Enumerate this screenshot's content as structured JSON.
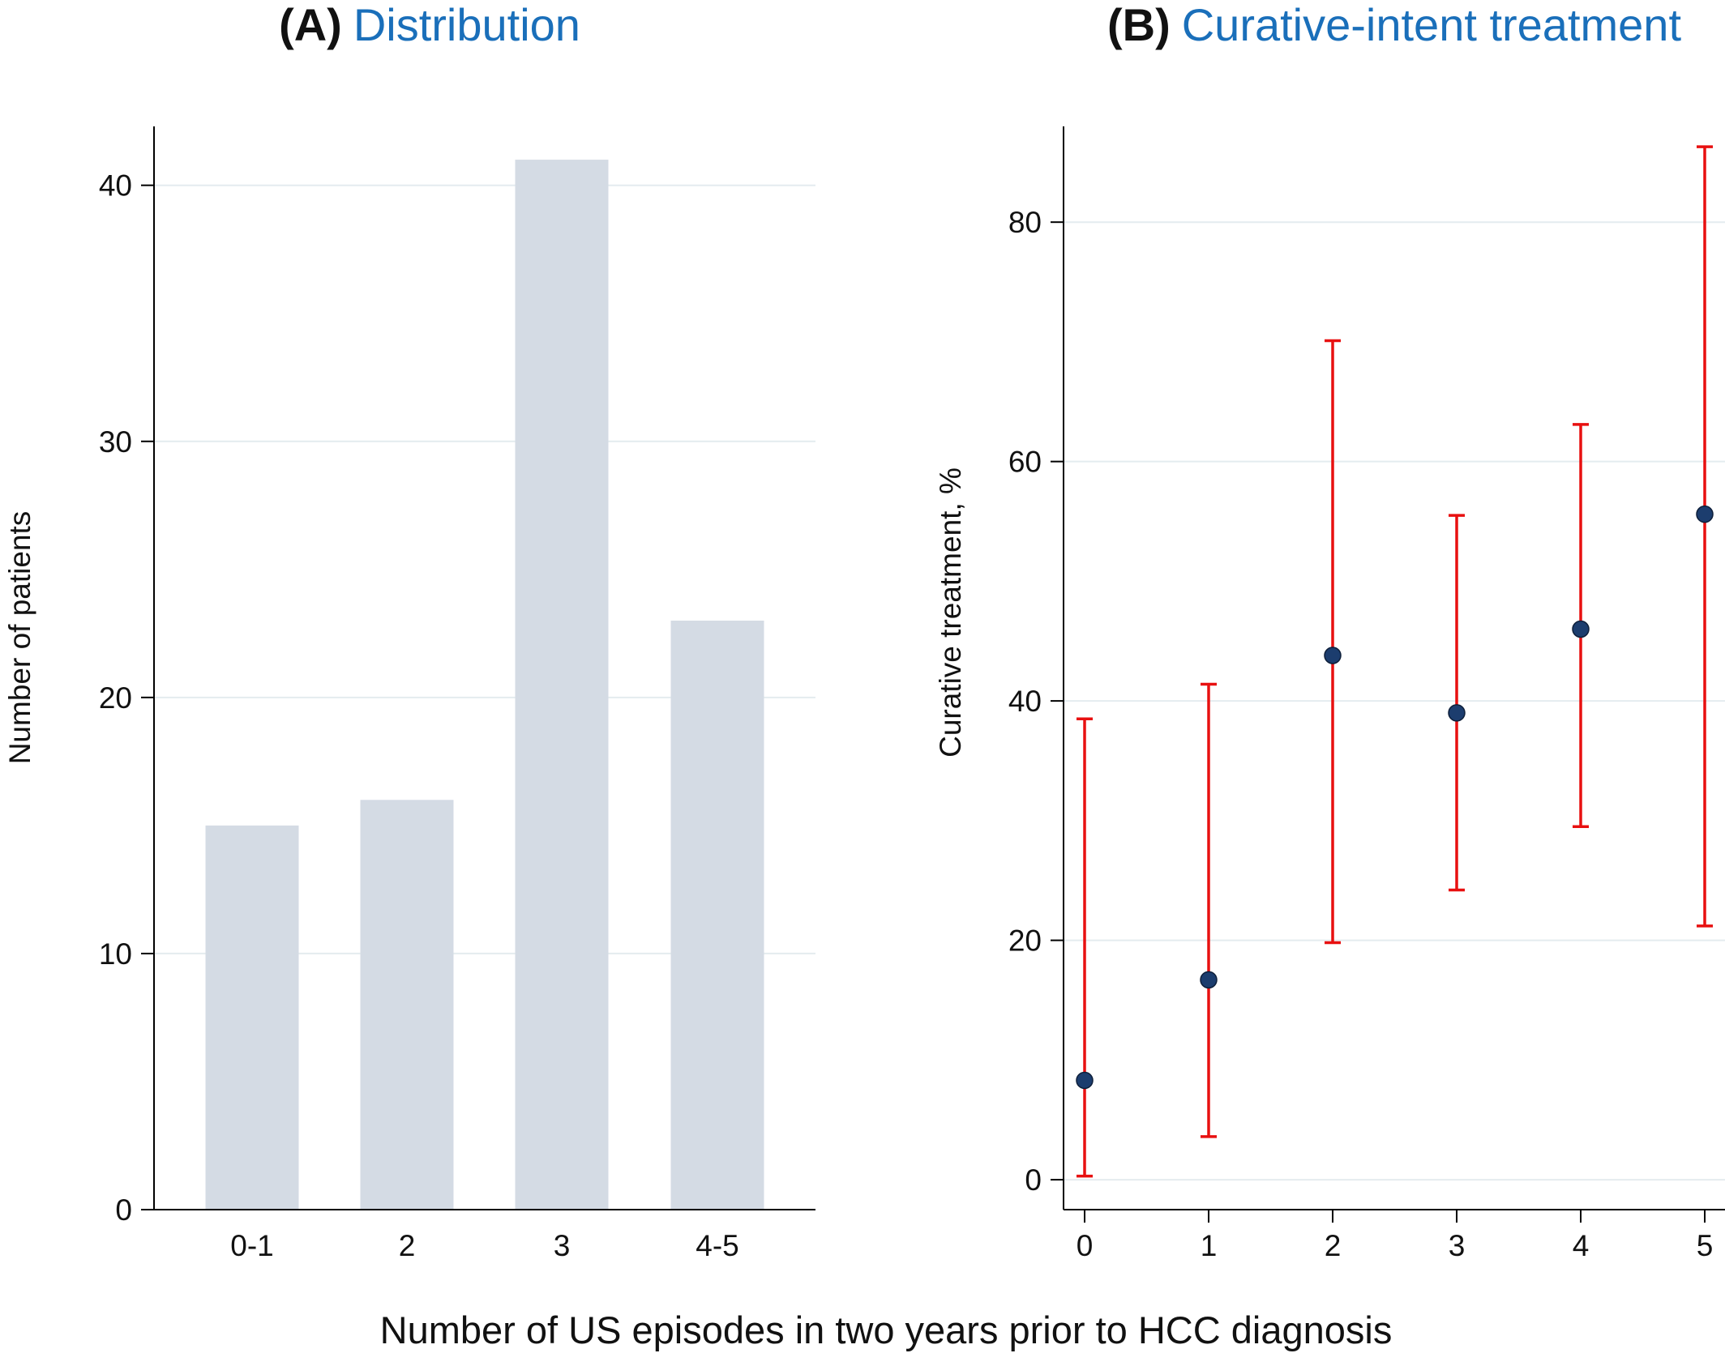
{
  "figure": {
    "shared_xlabel": "Number of US episodes in two years prior to HCC diagnosis"
  },
  "colors": {
    "bar_fill": "#d4dbe4",
    "gridline": "#e4ecef",
    "axis": "#000000",
    "error_bar": "#e81010",
    "point_fill": "#1c3d6e",
    "title_accent": "#1a6fba"
  },
  "chart_data": [
    {
      "type": "bar",
      "title_letter": "(A)",
      "title": "Distribution",
      "xlabel": "",
      "ylabel": "Number of patients",
      "categories": [
        "0-1",
        "2",
        "3",
        "4-5"
      ],
      "values": [
        15,
        16,
        41,
        23
      ],
      "yticks": [
        0,
        10,
        20,
        30,
        40
      ],
      "ylim": [
        0,
        42.3
      ],
      "grid": true
    },
    {
      "type": "scatter",
      "title_letter": "(B)",
      "title": "Curative-intent treatment",
      "xlabel": "",
      "ylabel": "Curative treatment, %",
      "x": [
        0,
        1,
        2,
        3,
        4,
        5
      ],
      "y": [
        8.3,
        16.7,
        43.8,
        39.0,
        46.0,
        55.6
      ],
      "ci_lower": [
        0.3,
        3.6,
        19.8,
        24.2,
        29.5,
        21.2
      ],
      "ci_upper": [
        38.5,
        41.4,
        70.1,
        55.5,
        63.1,
        86.3
      ],
      "xticks": [
        0,
        1,
        2,
        3,
        4,
        5
      ],
      "yticks": [
        0,
        20,
        40,
        60,
        80
      ],
      "ylim": [
        -2.5,
        88.0
      ],
      "grid": true,
      "error_bars": "confidence interval"
    }
  ]
}
